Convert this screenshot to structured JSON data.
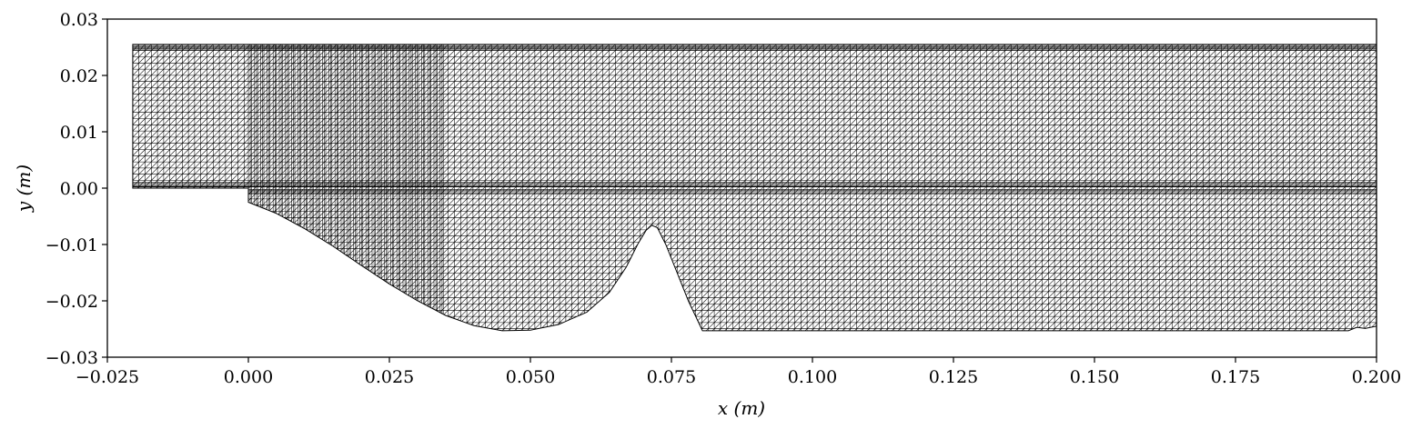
{
  "chart_data": {
    "type": "mesh",
    "title": "",
    "xlabel": "x (m)",
    "ylabel": "y (m)",
    "xlim": [
      -0.025,
      0.2
    ],
    "ylim": [
      -0.03,
      0.03
    ],
    "grid": false,
    "legend": null,
    "xticks": [
      -0.025,
      0.0,
      0.025,
      0.05,
      0.075,
      0.1,
      0.125,
      0.15,
      0.175,
      0.2
    ],
    "xtick_labels": [
      "−0.025",
      "0.000",
      "0.025",
      "0.050",
      "0.075",
      "0.100",
      "0.125",
      "0.150",
      "0.175",
      "0.200"
    ],
    "yticks": [
      0.03,
      0.02,
      0.01,
      0.0,
      -0.01,
      -0.02,
      -0.03
    ],
    "ytick_labels": [
      "0.03",
      "0.02",
      "0.01",
      "0.00",
      "−0.01",
      "−0.02",
      "−0.03"
    ],
    "mesh": {
      "element_type": "triangular",
      "edge_color": "#000000",
      "face_color": "#ffffff",
      "top_wall_y": 0.0255,
      "inlet": {
        "x_start": -0.0205,
        "x_end": 0.0,
        "bottom_y": 0.0
      },
      "step": {
        "x": 0.0,
        "drop_to_y": -0.0025
      },
      "lower_wall": [
        [
          0.0,
          -0.0025
        ],
        [
          0.005,
          -0.0045
        ],
        [
          0.01,
          -0.0072
        ],
        [
          0.015,
          -0.0103
        ],
        [
          0.02,
          -0.0137
        ],
        [
          0.025,
          -0.017
        ],
        [
          0.03,
          -0.02
        ],
        [
          0.035,
          -0.0226
        ],
        [
          0.04,
          -0.0244
        ],
        [
          0.045,
          -0.0253
        ],
        [
          0.05,
          -0.0252
        ],
        [
          0.055,
          -0.0242
        ],
        [
          0.06,
          -0.022
        ],
        [
          0.064,
          -0.0185
        ],
        [
          0.067,
          -0.014
        ],
        [
          0.069,
          -0.01
        ],
        [
          0.0705,
          -0.0075
        ],
        [
          0.0715,
          -0.0066
        ],
        [
          0.0725,
          -0.007
        ],
        [
          0.074,
          -0.01
        ],
        [
          0.076,
          -0.015
        ],
        [
          0.078,
          -0.02
        ],
        [
          0.0805,
          -0.0253
        ],
        [
          0.195,
          -0.0253
        ],
        [
          0.1965,
          -0.0247
        ],
        [
          0.198,
          -0.0249
        ],
        [
          0.2,
          -0.0245
        ]
      ],
      "inlet_cell_size": 0.0011,
      "downstream_cell_size": 0.0011
    }
  }
}
